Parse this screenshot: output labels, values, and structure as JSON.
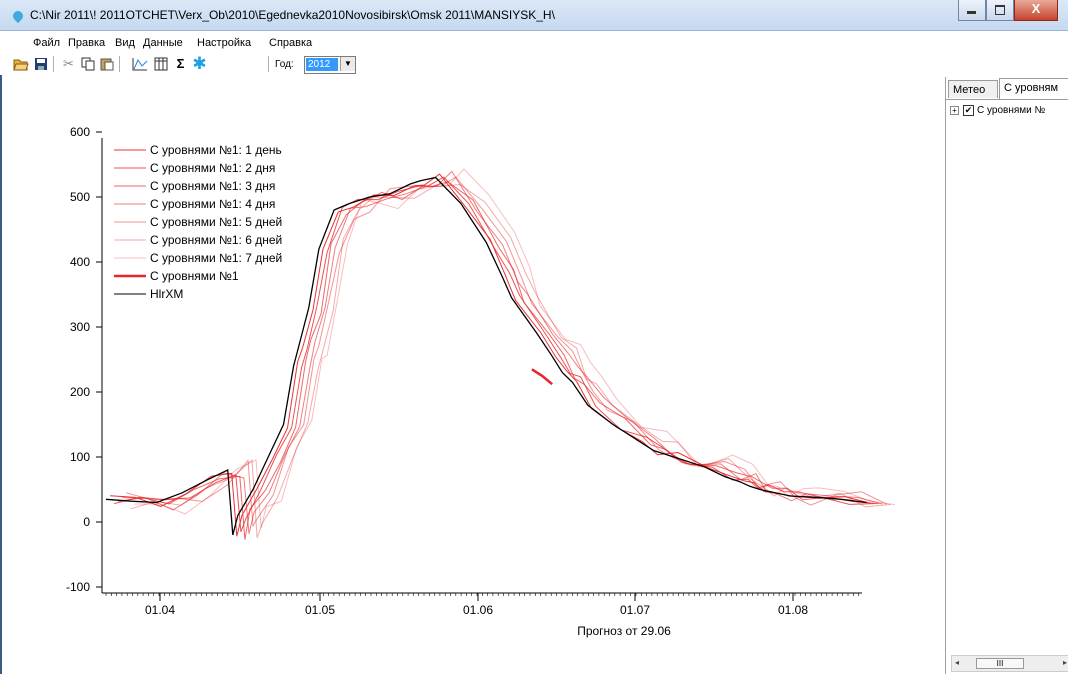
{
  "window": {
    "title": "C:\\Nir 2011\\!  2011OTCHET\\Verx_Ob\\2010\\Egednevka2010Novosibirsk\\Omsk 2011\\MANSIYSK_H\\",
    "close_glyph": "X"
  },
  "menu": [
    "Файл",
    "Правка",
    "Вид",
    "Данные",
    "Настройка",
    "Справка"
  ],
  "toolbar": {
    "year_label": "Год:",
    "year_value": "2012"
  },
  "right_panel": {
    "tabs": [
      "Метео",
      "С уровням"
    ],
    "tree_item": "С уровнями №",
    "scroll_thumb": "III"
  },
  "chart_data": {
    "type": "line",
    "xlabel": "Прогноз от 29.06",
    "ylabel": "",
    "x_ticks": [
      "01.04",
      "01.05",
      "01.06",
      "01.07",
      "01.08"
    ],
    "y_ticks": [
      600,
      500,
      400,
      300,
      200,
      100,
      0,
      -100
    ],
    "ylim": [
      -100,
      600
    ],
    "legend_position": "top-left",
    "colors": {
      "forecast": "#e8262a",
      "observed": "#000000"
    },
    "legend": [
      "С уровнями №1: 1 день",
      "С уровнями №1: 2 дня",
      "С уровнями №1: 3 дня",
      "С уровнями №1: 4 дня",
      "С уровнями №1: 5 дней",
      "С уровнями №1: 6 дней",
      "С уровнями №1: 7 дней",
      "С уровнями №1",
      "HlrXM"
    ],
    "observed": {
      "name": "HlrXM",
      "days": [
        0,
        5,
        10,
        15,
        20,
        24,
        25,
        26,
        29,
        32,
        35,
        37,
        38,
        40,
        42,
        45,
        48,
        52,
        56,
        60,
        62,
        65,
        70,
        75,
        78,
        80,
        85,
        88,
        90,
        92,
        95,
        100,
        105,
        108,
        112,
        118,
        122,
        125,
        127,
        129,
        132,
        135,
        140,
        145,
        150
      ],
      "values": [
        35,
        32,
        30,
        45,
        65,
        80,
        -20,
        10,
        50,
        100,
        150,
        240,
        270,
        330,
        420,
        480,
        490,
        500,
        505,
        520,
        525,
        530,
        490,
        430,
        380,
        345,
        290,
        255,
        230,
        215,
        180,
        150,
        125,
        110,
        100,
        85,
        70,
        62,
        55,
        50,
        45,
        40,
        38,
        35,
        30
      ]
    },
    "forecast_main": {
      "name": "С уровнями №1",
      "days": [
        84,
        86,
        88
      ],
      "values": [
        235,
        225,
        212
      ]
    }
  }
}
